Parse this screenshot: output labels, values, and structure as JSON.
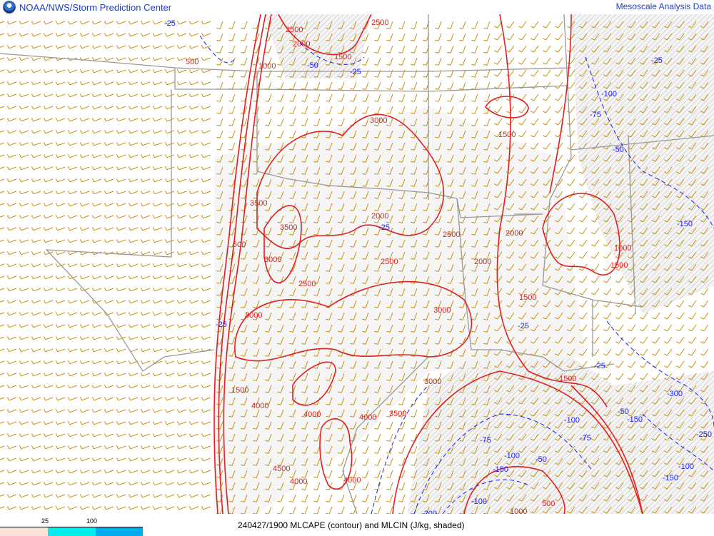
{
  "header": {
    "org": "NOAA/NWS/Storm Prediction Center",
    "product": "Mesoscale Analysis Data",
    "logo": "noaa-logo"
  },
  "footer": {
    "caption": "240427/1900 MLCAPE (contour) and MLCIN (J/kg, shaded)",
    "legend": {
      "ticks": [
        "25",
        "100"
      ],
      "colors": [
        "#fbe3da",
        "#00eeee",
        "#00aeef"
      ]
    }
  },
  "colors": {
    "cape_contour": "#e02020",
    "cin_contour": "#1a1aff",
    "wind_barbs": "#c8900a",
    "borders": "#999999",
    "cin_shade": "#d8d8d8"
  },
  "cape_labels": [
    "2500",
    "2000",
    "1500",
    "500",
    "1000",
    "500",
    "3000",
    "1500",
    "2000",
    "3500",
    "2500",
    "3000",
    "2500",
    "2000",
    "2500",
    "2000",
    "1500",
    "1000",
    "1500",
    "3000",
    "3000",
    "4000",
    "4000",
    "4000",
    "3500",
    "4000",
    "4500",
    "4000",
    "1500",
    "1000",
    "500",
    "3000",
    "1500",
    "2500",
    "3500"
  ],
  "cin_labels": [
    "-25",
    "-50",
    "-25",
    "-100",
    "-75",
    "-50",
    "-25",
    "-150",
    "-25",
    "-25",
    "-100",
    "-75",
    "-50",
    "-100",
    "-150",
    "-200",
    "-250",
    "-150",
    "-100",
    "-50",
    "-150",
    "-25",
    "-25",
    "-300",
    "-250",
    "-100",
    "-25",
    "-75"
  ]
}
